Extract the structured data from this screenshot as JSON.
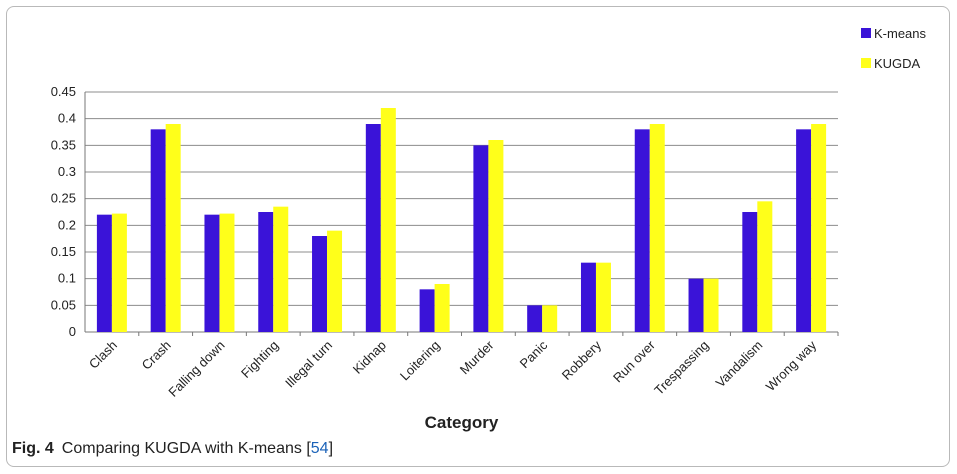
{
  "chart_data": {
    "type": "bar",
    "title": "",
    "xlabel": "Category",
    "ylabel": "",
    "ylim": [
      0,
      0.45
    ],
    "yticks": [
      0,
      0.05,
      0.1,
      0.15,
      0.2,
      0.25,
      0.3,
      0.35,
      0.4,
      0.45
    ],
    "ytick_labels": [
      "0",
      "0.05",
      "0.1",
      "0.15",
      "0.2",
      "0.25",
      "0.3",
      "0.35",
      "0.4",
      "0.45"
    ],
    "grid": "horizontal",
    "legend_position": "top-right",
    "categories": [
      "Clash",
      "Crash",
      "Falling down",
      "Fighting",
      "Illegal turn",
      "Kidnap",
      "Loitering",
      "Murder",
      "Panic",
      "Robbery",
      "Run over",
      "Trespassing",
      "Vandalism",
      "Wrong way"
    ],
    "series": [
      {
        "name": "K-means",
        "color": "#3a13d8",
        "values": [
          0.22,
          0.38,
          0.22,
          0.225,
          0.18,
          0.39,
          0.08,
          0.35,
          0.05,
          0.13,
          0.38,
          0.1,
          0.225,
          0.38
        ]
      },
      {
        "name": "KUGDA",
        "color": "#ffff1a",
        "values": [
          0.222,
          0.39,
          0.222,
          0.235,
          0.19,
          0.42,
          0.09,
          0.36,
          0.05,
          0.13,
          0.39,
          0.1,
          0.245,
          0.39
        ]
      }
    ]
  },
  "caption": {
    "label": "Fig. 4",
    "text": "Comparing KUGDA with K-means [",
    "ref": "54",
    "close": "]"
  }
}
